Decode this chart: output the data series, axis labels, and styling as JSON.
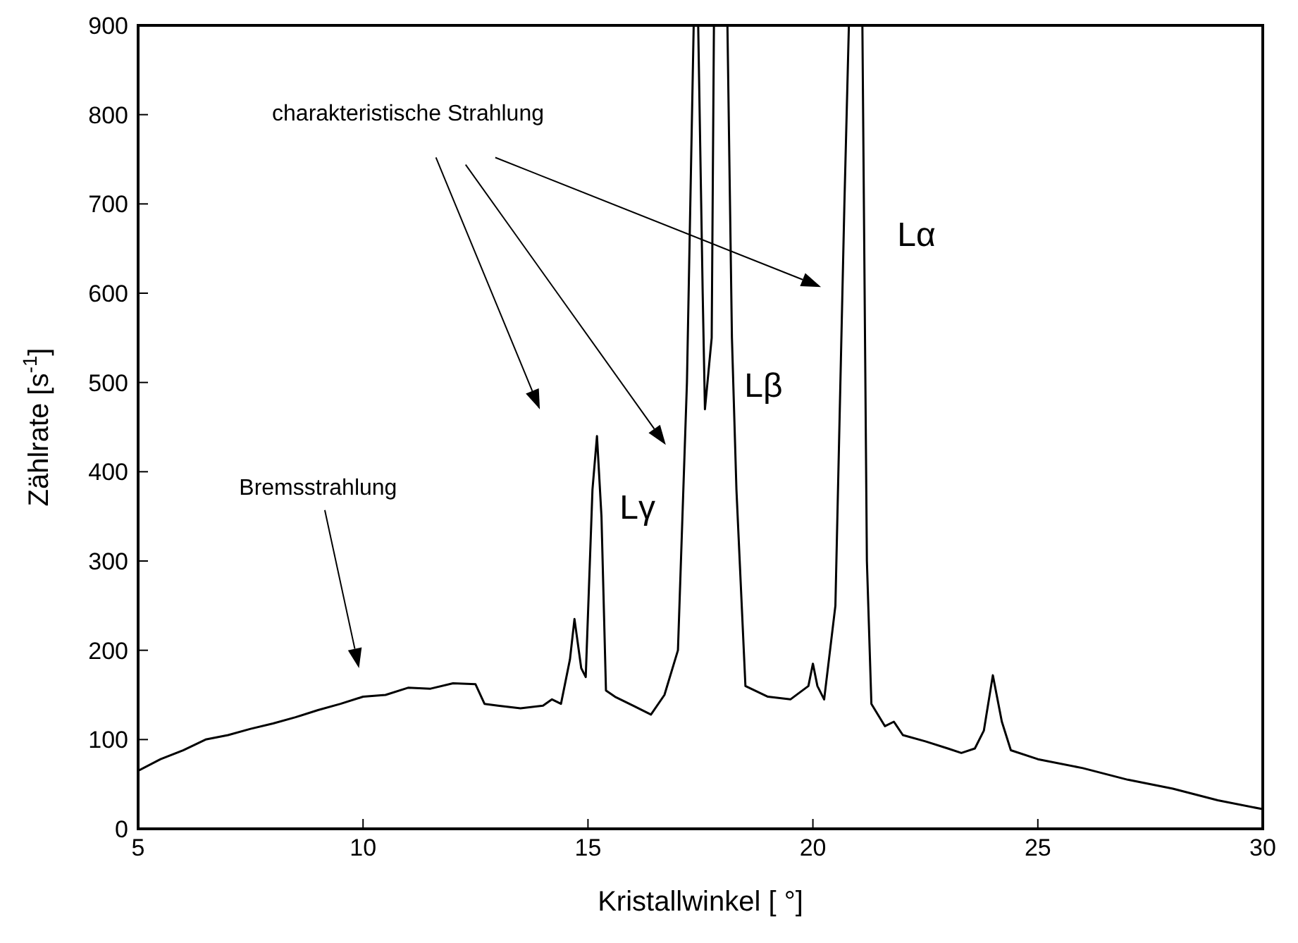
{
  "chart_data": {
    "type": "line",
    "xlabel": "Kristallwinkel [ °]",
    "ylabel": "Zählrate [s$^{-1}$]",
    "xlim": [
      5,
      30
    ],
    "xticks": [
      5,
      10,
      15,
      20,
      25,
      30
    ],
    "ylim": [
      0,
      900
    ],
    "yticks": [
      0,
      100,
      200,
      300,
      400,
      500,
      600,
      700,
      800,
      900
    ],
    "marker": "none",
    "line_style": "solid",
    "series": [
      {
        "color": "#000000",
        "x": [
          5,
          5.5,
          6,
          6.5,
          7,
          7.5,
          8,
          8.5,
          9,
          9.5,
          10,
          10.5,
          11,
          11.5,
          12,
          12.5,
          12.7,
          13,
          13.5,
          14,
          14.2,
          14.4,
          14.6,
          14.7,
          14.85,
          14.95,
          15.1,
          15.2,
          15.3,
          15.4,
          15.6,
          16,
          16.4,
          16.7,
          17,
          17.2,
          17.35,
          17.45,
          17.55,
          17.6,
          17.75,
          17.8,
          18.1,
          18.2,
          18.3,
          18.5,
          19,
          19.5,
          19.9,
          20,
          20.1,
          20.25,
          20.5,
          20.7,
          20.8,
          21.1,
          21.2,
          21.3,
          21.6,
          21.8,
          22,
          22.5,
          23,
          23.3,
          23.6,
          23.8,
          24,
          24.2,
          24.4,
          25,
          26,
          27,
          28,
          29,
          30
        ],
        "values": [
          65,
          78,
          88,
          100,
          105,
          112,
          118,
          125,
          133,
          140,
          148,
          150,
          158,
          157,
          163,
          162,
          140,
          138,
          135,
          138,
          145,
          140,
          190,
          235,
          180,
          170,
          380,
          440,
          350,
          155,
          148,
          138,
          128,
          150,
          200,
          500,
          900,
          900,
          600,
          470,
          550,
          900,
          900,
          550,
          380,
          160,
          148,
          145,
          160,
          185,
          160,
          145,
          250,
          700,
          900,
          900,
          300,
          140,
          115,
          120,
          105,
          98,
          90,
          85,
          90,
          110,
          172,
          120,
          88,
          78,
          68,
          55,
          45,
          32,
          22
        ]
      }
    ],
    "annotations": [
      "charakteristische Strahlung",
      "Bremsstrahlung",
      "Lγ",
      "Lβ",
      "Lα"
    ]
  }
}
